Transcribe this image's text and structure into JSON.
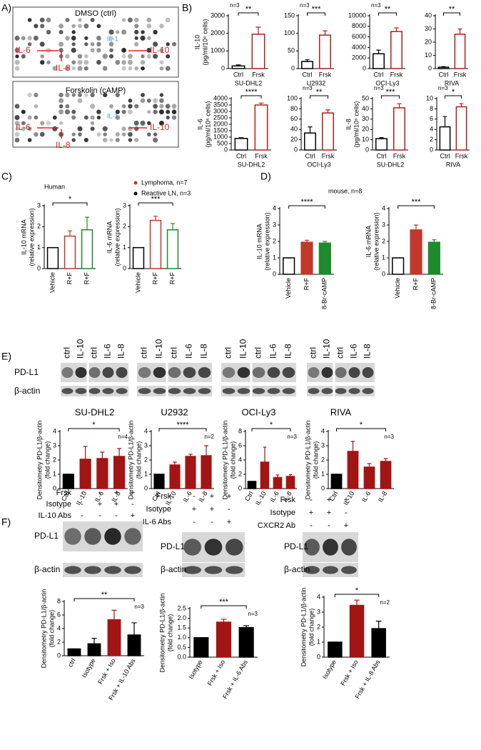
{
  "panel_labels": [
    "A)",
    "B)",
    "C)",
    "D)",
    "E)",
    "F)"
  ],
  "panel_a": {
    "arrays": [
      {
        "title": "DMSO (ctrl)",
        "labels": [
          "IL-6",
          "IL-10",
          "IL-8",
          "IL-1"
        ]
      },
      {
        "title": "Forskolin (cAMP)",
        "labels": [
          "IL-6",
          "IL-10",
          "IL-8",
          "IL-1"
        ]
      }
    ]
  },
  "panel_c": {
    "note": "Human",
    "legend": [
      {
        "name": "Lymphoma, n=7",
        "color": "#c0392b"
      },
      {
        "name": "Reactive LN, n=3",
        "color": "#000000"
      }
    ]
  },
  "panel_d": {
    "note": "mouse, n=8"
  },
  "panel_e": {
    "row_labels": [
      "PD-L1",
      "β-actin"
    ],
    "blots": [
      {
        "cell_line": "SU-DHL2",
        "lanes": [
          "ctrl",
          "IL-10",
          "ctrl",
          "IL-6",
          "IL-8"
        ]
      },
      {
        "cell_line": "U2932",
        "lanes": [
          "ctrl",
          "IL-10",
          "ctrl",
          "IL-6",
          "IL-8"
        ]
      },
      {
        "cell_line": "OCI-Ly3",
        "lanes": [
          "ctrl",
          "IL-10",
          "ctrl",
          "IL-6",
          "IL-8"
        ]
      },
      {
        "cell_line": "RIVA",
        "lanes": [
          "ctrl",
          "IL-10",
          "ctrl",
          "IL-6",
          "IL-8"
        ]
      }
    ]
  },
  "panel_f": {
    "blots": [
      {
        "row_labels": [
          "PD-L1",
          "β-actin"
        ],
        "conditions": [
          {
            "name": "Frsk",
            "signs": [
              "-",
              "-",
              "+",
              "+"
            ]
          },
          {
            "name": "Isotype",
            "signs": [
              "-",
              "+",
              "+",
              "-"
            ]
          },
          {
            "name": "IL-10 Abs",
            "signs": [
              "-",
              "-",
              "-",
              "+"
            ]
          }
        ]
      },
      {
        "row_labels": [
          "PD-L1",
          "β-actin"
        ],
        "conditions": [
          {
            "name": "Frsk",
            "signs": [
              "-",
              "+",
              "+"
            ]
          },
          {
            "name": "Isotype",
            "signs": [
              "+",
              "+",
              "-"
            ]
          },
          {
            "name": "IL-6 Abs",
            "signs": [
              "-",
              "-",
              "+"
            ]
          }
        ]
      },
      {
        "row_labels": [
          "PD-L1",
          "β-actin"
        ],
        "conditions": [
          {
            "name": "Frsk",
            "signs": [
              "-",
              "+",
              "+"
            ]
          },
          {
            "name": "Isotype",
            "signs": [
              "+",
              "+",
              "-"
            ]
          },
          {
            "name": "CXCR2 Ab",
            "signs": [
              "-",
              "-",
              "+"
            ]
          }
        ]
      }
    ]
  },
  "chart_data": [
    {
      "type": "bar",
      "ylabel": [
        "IL-10",
        "(pg/ml/10⁶ cells)"
      ],
      "xlabel": "SU-DHL2",
      "categories": [
        "Ctrl",
        "Frsk"
      ],
      "values": [
        150,
        1950
      ],
      "errors": [
        60,
        400
      ],
      "colors": [
        "#000000",
        "#b01e1e"
      ],
      "fills": [
        "#ffffff",
        "#ffffff"
      ],
      "ylim": [
        0,
        3000
      ],
      "yticks": [
        0,
        1000,
        2000,
        3000
      ],
      "significance": "**",
      "n_label": "n=3"
    },
    {
      "type": "bar",
      "xlabel": "U2932",
      "categories": [
        "Ctrl",
        "Frsk"
      ],
      "values": [
        20,
        95
      ],
      "errors": [
        5,
        12
      ],
      "colors": [
        "#000000",
        "#b01e1e"
      ],
      "fills": [
        "#ffffff",
        "#ffffff"
      ],
      "ylim": [
        0,
        150
      ],
      "yticks": [
        0,
        50,
        100,
        150
      ],
      "significance": "***",
      "n_label": "n=3"
    },
    {
      "type": "bar",
      "xlabel": "OCI-Ly3",
      "categories": [
        "Ctrl",
        "Frsk"
      ],
      "values": [
        2800,
        7000
      ],
      "errors": [
        700,
        700
      ],
      "colors": [
        "#000000",
        "#b01e1e"
      ],
      "fills": [
        "#ffffff",
        "#ffffff"
      ],
      "ylim": [
        0,
        10000
      ],
      "yticks": [
        0,
        2000,
        4000,
        6000,
        8000,
        10000
      ],
      "significance": "**",
      "n_label": "n=3"
    },
    {
      "type": "bar",
      "xlabel": "RIVA",
      "categories": [
        "Ctrl",
        "Frsk"
      ],
      "values": [
        1,
        26
      ],
      "errors": [
        0.5,
        4
      ],
      "colors": [
        "#000000",
        "#b01e1e"
      ],
      "fills": [
        "#ffffff",
        "#ffffff"
      ],
      "ylim": [
        0,
        40
      ],
      "yticks": [
        0,
        10,
        20,
        30,
        40
      ],
      "significance": "**"
    },
    {
      "type": "bar",
      "ylabel": [
        "IL-6",
        "(pg/ml/10⁶ cells)"
      ],
      "xlabel": "SU-DHL2",
      "categories": [
        "Ctrl",
        "Frsk"
      ],
      "values": [
        900,
        3500
      ],
      "errors": [
        50,
        150
      ],
      "colors": [
        "#000000",
        "#b01e1e"
      ],
      "fills": [
        "#ffffff",
        "#ffffff"
      ],
      "ylim": [
        0,
        4000
      ],
      "yticks": [
        0,
        500,
        1000,
        1500,
        2000,
        2500,
        3000,
        3500,
        4000
      ],
      "significance": "****"
    },
    {
      "type": "bar",
      "xlabel": "OCI-Ly3",
      "categories": [
        "Ctrl",
        "Frsk"
      ],
      "values": [
        33,
        72
      ],
      "errors": [
        12,
        6
      ],
      "colors": [
        "#000000",
        "#b01e1e"
      ],
      "fills": [
        "#ffffff",
        "#ffffff"
      ],
      "ylim": [
        0,
        100
      ],
      "yticks": [
        0,
        20,
        40,
        60,
        80,
        100
      ],
      "significance": "**",
      "n_label": "n=3"
    },
    {
      "type": "bar",
      "ylabel": [
        "IL-8",
        "(pg/ml/10⁶ cells)"
      ],
      "xlabel": "SU-DHL2",
      "categories": [
        "Ctrl",
        "Frsk"
      ],
      "values": [
        11,
        41
      ],
      "errors": [
        1,
        4
      ],
      "colors": [
        "#000000",
        "#b01e1e"
      ],
      "fills": [
        "#ffffff",
        "#ffffff"
      ],
      "ylim": [
        0,
        50
      ],
      "yticks": [
        0,
        10,
        20,
        30,
        40,
        50
      ],
      "significance": "***",
      "n_label": "n=3"
    },
    {
      "type": "bar",
      "xlabel": "RIVA",
      "categories": [
        "Ctrl",
        "Frsk"
      ],
      "values": [
        4.5,
        8.4
      ],
      "errors": [
        2,
        0.6
      ],
      "colors": [
        "#000000",
        "#b01e1e"
      ],
      "fills": [
        "#ffffff",
        "#ffffff"
      ],
      "ylim": [
        0,
        10
      ],
      "yticks": [
        0,
        2,
        4,
        6,
        8,
        10
      ],
      "significance": "*",
      "n_label": "n=3"
    },
    {
      "type": "bar",
      "ylabel": [
        "IL-10 mRNA",
        "(relative expression)"
      ],
      "categories": [
        "Vehicle",
        "R+F",
        "R+F"
      ],
      "values": [
        1,
        1.55,
        1.85
      ],
      "errors": [
        0,
        0.25,
        0.6
      ],
      "colors": [
        "#000000",
        "#c0392b",
        "#1e8a2e"
      ],
      "fills": [
        "#ffffff",
        "#ffffff",
        "#ffffff"
      ],
      "ylim": [
        0,
        3
      ],
      "yticks": [
        0,
        1,
        2,
        3
      ],
      "significance": "*"
    },
    {
      "type": "bar",
      "ylabel": [
        "IL-6 mRNA",
        "(relative expression)"
      ],
      "categories": [
        "Vehicle",
        "R+F",
        "R+F"
      ],
      "values": [
        1,
        2.3,
        1.85
      ],
      "errors": [
        0,
        0.2,
        0.3
      ],
      "colors": [
        "#000000",
        "#c0392b",
        "#1e8a2e"
      ],
      "fills": [
        "#ffffff",
        "#ffffff",
        "#ffffff"
      ],
      "ylim": [
        0,
        3
      ],
      "yticks": [
        0,
        1,
        2,
        3
      ],
      "significance": "***"
    },
    {
      "type": "bar",
      "ylabel": [
        "IL-10 mRNA",
        "(relative expression)"
      ],
      "categories": [
        "Vehicle",
        "R+F",
        "8-Br-cAMP"
      ],
      "values": [
        1,
        1.95,
        1.9
      ],
      "errors": [
        0,
        0.12,
        0.1
      ],
      "colors": [
        "#000000",
        "#c0392b",
        "#1e8a2e"
      ],
      "fills": [
        "#ffffff",
        "#c0392b",
        "#1e8a2e"
      ],
      "ylim": [
        0,
        4
      ],
      "yticks": [
        0,
        1,
        2,
        3,
        4
      ],
      "significance": "****"
    },
    {
      "type": "bar",
      "ylabel": [
        "IL-6 mRNA",
        "(relative expression)"
      ],
      "categories": [
        "Vehicle",
        "R+F",
        "8-Br-cAMP"
      ],
      "values": [
        1,
        2.7,
        1.95
      ],
      "errors": [
        0,
        0.3,
        0.15
      ],
      "colors": [
        "#000000",
        "#c0392b",
        "#1e8a2e"
      ],
      "fills": [
        "#ffffff",
        "#c0392b",
        "#1e8a2e"
      ],
      "ylim": [
        0,
        4
      ],
      "yticks": [
        0,
        1,
        2,
        3,
        4
      ],
      "significance": "***"
    },
    {
      "type": "bar",
      "ylabel": [
        "Densitometry PD-L1/β-actin",
        "(fold change)"
      ],
      "categories": [
        "Ctrl",
        "IL-10",
        "IL-6",
        "IL-8"
      ],
      "values": [
        1,
        2.05,
        2.1,
        2.25
      ],
      "errors": [
        0,
        0.9,
        0.45,
        0.55
      ],
      "colors": [
        "#000000",
        "#a31515",
        "#a31515",
        "#a31515"
      ],
      "fills": [
        "#000000",
        "#a31515",
        "#a31515",
        "#a31515"
      ],
      "ylim": [
        0,
        4
      ],
      "yticks": [
        0,
        1,
        2,
        3,
        4
      ],
      "significance": "*",
      "n_label": "n=4"
    },
    {
      "type": "bar",
      "ylabel": [
        "Densitometry PD-L1/β-actin",
        "(fold change)"
      ],
      "categories": [
        "Ctrl",
        "IL-10",
        "IL-6",
        "IL-8"
      ],
      "values": [
        1,
        1.65,
        2.25,
        2.3
      ],
      "errors": [
        0,
        0.2,
        0.15,
        0.7
      ],
      "colors": [
        "#000000",
        "#a31515",
        "#a31515",
        "#a31515"
      ],
      "fills": [
        "#000000",
        "#a31515",
        "#a31515",
        "#a31515"
      ],
      "ylim": [
        0,
        4
      ],
      "yticks": [
        0,
        1,
        2,
        3,
        4
      ],
      "significance": "****",
      "n_label": "n=2"
    },
    {
      "type": "bar",
      "ylabel": [
        "Densitometry PD-L1/β-actin",
        "(fold change)"
      ],
      "categories": [
        "Ctrl",
        "IL-10",
        "IL-6",
        "IL-8"
      ],
      "values": [
        1,
        3.7,
        1.55,
        1.7
      ],
      "errors": [
        0,
        2.1,
        0.35,
        0.25
      ],
      "colors": [
        "#000000",
        "#a31515",
        "#a31515",
        "#a31515"
      ],
      "fills": [
        "#000000",
        "#a31515",
        "#a31515",
        "#a31515"
      ],
      "ylim": [
        0,
        8
      ],
      "yticks": [
        0,
        2,
        4,
        6,
        8
      ],
      "significance": "*",
      "n_label": "n=3"
    },
    {
      "type": "bar",
      "ylabel": [
        "Densitometry PD-L1/β-actin",
        "(fold change)"
      ],
      "categories": [
        "Ctrl",
        "IL-10",
        "IL-6",
        "IL-8"
      ],
      "values": [
        1,
        2.6,
        1.5,
        1.9
      ],
      "errors": [
        0,
        0.7,
        0.25,
        0.2
      ],
      "colors": [
        "#000000",
        "#a31515",
        "#a31515",
        "#a31515"
      ],
      "fills": [
        "#000000",
        "#a31515",
        "#a31515",
        "#a31515"
      ],
      "ylim": [
        0,
        4
      ],
      "yticks": [
        0,
        1,
        2,
        3,
        4
      ],
      "significance": "*",
      "n_label": "n=3"
    },
    {
      "type": "bar",
      "ylabel": [
        "Densitometry PD-L1/β-actin",
        "(fold change)"
      ],
      "categories": [
        "ctrl",
        "Isotype",
        "Frsk + Iso",
        "Frsk + IL-10 Abs"
      ],
      "values": [
        1,
        1.75,
        5.3,
        3.05
      ],
      "errors": [
        0,
        0.8,
        1.4,
        1.8
      ],
      "colors": [
        "#000000",
        "#000000",
        "#a31515",
        "#000000"
      ],
      "fills": [
        "#000000",
        "#000000",
        "#a31515",
        "#000000"
      ],
      "ylim": [
        0,
        8
      ],
      "yticks": [
        0,
        2,
        4,
        6,
        8
      ],
      "significance": "**",
      "n_label": "n=3"
    },
    {
      "type": "bar",
      "ylabel": [
        "Densitometry PD-L1/β-actin",
        "(fold change)"
      ],
      "categories": [
        "Isotype",
        "Frsk + Iso",
        "Frsk + IL-6 Abs"
      ],
      "values": [
        1,
        1.8,
        1.52
      ],
      "errors": [
        0,
        0.15,
        0.1
      ],
      "colors": [
        "#000000",
        "#a31515",
        "#000000"
      ],
      "fills": [
        "#000000",
        "#a31515",
        "#000000"
      ],
      "ylim": [
        0,
        2.5
      ],
      "yticks": [
        {
          "value": 0,
          "label": "0.0"
        },
        0.5,
        {
          "value": 1,
          "label": "1.0"
        },
        1.5,
        {
          "value": 2,
          "label": "2.0"
        },
        2.5
      ],
      "significance": "***",
      "n_label": "n=3"
    },
    {
      "type": "bar",
      "ylabel": [
        "Densitometry PD-L1/β-actin",
        "(fold change)"
      ],
      "categories": [
        "Isotype",
        "Frsk + Iso",
        "Frsk + IL-8 Abs"
      ],
      "values": [
        1,
        3.45,
        1.9
      ],
      "errors": [
        0,
        0.35,
        0.5
      ],
      "colors": [
        "#000000",
        "#a31515",
        "#000000"
      ],
      "fills": [
        "#000000",
        "#a31515",
        "#000000"
      ],
      "ylim": [
        0,
        4
      ],
      "yticks": [
        0,
        1,
        2,
        3,
        4
      ],
      "significance": "*",
      "n_label": "n=2"
    }
  ]
}
